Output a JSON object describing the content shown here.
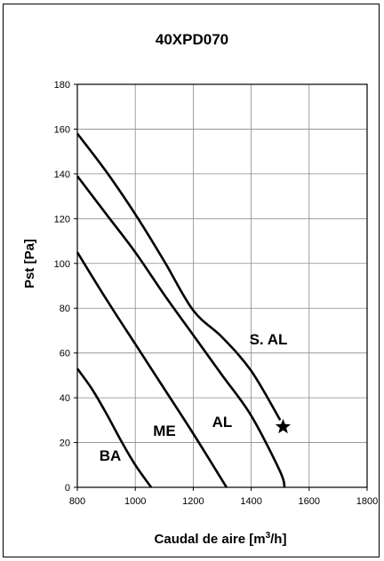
{
  "chart_data": {
    "type": "line",
    "title": "40XPD070",
    "xlabel_main": "Caudal de aire [m",
    "xlabel_sup": "3",
    "xlabel_end": "/h]",
    "ylabel": "Pst [Pa]",
    "xlim": [
      800,
      1800
    ],
    "ylim": [
      0,
      180
    ],
    "x_ticks": [
      "800",
      "1000",
      "1200",
      "1400",
      "1600",
      "1800"
    ],
    "y_ticks": [
      "0",
      "20",
      "40",
      "60",
      "80",
      "100",
      "120",
      "140",
      "160",
      "180"
    ],
    "grid": true,
    "series": [
      {
        "name": "BA",
        "x": [
          800,
          850,
          900,
          950,
          1000,
          1055
        ],
        "y": [
          53,
          44,
          33,
          21,
          10,
          0
        ]
      },
      {
        "name": "ME",
        "x": [
          800,
          900,
          1000,
          1100,
          1200,
          1315
        ],
        "y": [
          105,
          84,
          64,
          44,
          24,
          0
        ]
      },
      {
        "name": "AL",
        "x": [
          800,
          900,
          1000,
          1100,
          1200,
          1300,
          1400,
          1500,
          1515
        ],
        "y": [
          139,
          122,
          105,
          86,
          68,
          50,
          32,
          7,
          0
        ]
      },
      {
        "name": "S. AL",
        "x": [
          800,
          900,
          1000,
          1100,
          1200,
          1300,
          1400,
          1500
        ],
        "y": [
          158,
          141,
          122,
          101,
          79,
          67,
          52,
          30
        ]
      }
    ],
    "marker": {
      "x": 1510,
      "y": 27,
      "symbol": "star"
    }
  }
}
